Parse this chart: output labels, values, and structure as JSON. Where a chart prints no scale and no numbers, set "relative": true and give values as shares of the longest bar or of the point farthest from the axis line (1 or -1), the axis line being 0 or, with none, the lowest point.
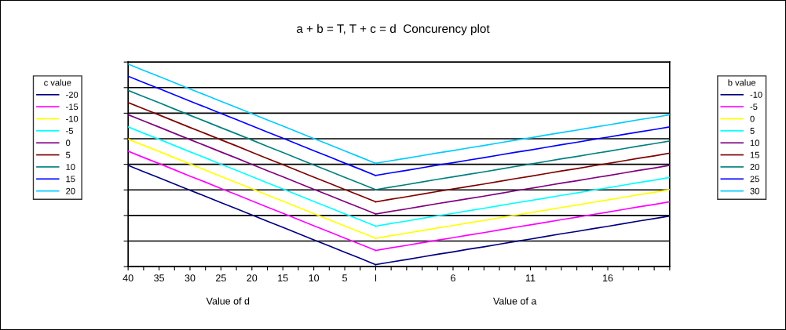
{
  "chart_data": {
    "type": "line",
    "title": "a + b = T, T + c = d  Concurency plot",
    "annotations": [
      "Value of d",
      "Value of a"
    ],
    "relative": true,
    "grid": "y",
    "legend": [
      "left",
      "right"
    ],
    "legend_title": [
      "c value",
      "b value"
    ],
    "line_style": "solid",
    "marker": "none",
    "categories": [
      "40",
      null,
      "35",
      null,
      "30",
      null,
      "25",
      null,
      "20",
      null,
      "15",
      null,
      "10",
      null,
      "5",
      null,
      "I",
      null,
      null,
      null,
      null,
      "6",
      null,
      null,
      null,
      null,
      "11",
      null,
      null,
      null,
      null,
      "16",
      null,
      null,
      null,
      null
    ],
    "series": [
      {
        "name": "-20",
        "color": "#000080",
        "values": [
          0.5,
          0.469,
          0.439,
          0.408,
          0.377,
          0.347,
          0.316,
          0.286,
          0.255,
          0.224,
          0.194,
          0.163,
          0.132,
          0.102,
          0.071,
          0.041,
          0.01,
          null,
          null,
          null,
          null,
          null,
          null,
          null,
          null,
          null,
          null,
          null,
          null,
          null,
          null,
          null,
          null,
          null,
          null,
          null
        ]
      },
      {
        "name": "-15",
        "color": "#ff00ff",
        "values": [
          0.57,
          0.539,
          0.509,
          0.478,
          0.447,
          0.417,
          0.386,
          0.356,
          0.325,
          0.294,
          0.264,
          0.233,
          0.202,
          0.172,
          0.141,
          0.111,
          0.08,
          null,
          null,
          null,
          null,
          null,
          null,
          null,
          null,
          null,
          null,
          null,
          null,
          null,
          null,
          null,
          null,
          null,
          null,
          null
        ]
      },
      {
        "name": "-10",
        "color": "#ffff00",
        "values": [
          0.63,
          0.599,
          0.569,
          0.538,
          0.507,
          0.477,
          0.446,
          0.416,
          0.385,
          0.354,
          0.324,
          0.293,
          0.262,
          0.232,
          0.201,
          0.171,
          0.14,
          null,
          null,
          null,
          null,
          null,
          null,
          null,
          null,
          null,
          null,
          null,
          null,
          null,
          null,
          null,
          null,
          null,
          null,
          null
        ]
      },
      {
        "name": "-5",
        "color": "#00ffff",
        "values": [
          0.69,
          0.659,
          0.629,
          0.598,
          0.567,
          0.537,
          0.506,
          0.476,
          0.445,
          0.414,
          0.384,
          0.353,
          0.322,
          0.292,
          0.261,
          0.231,
          0.2,
          null,
          null,
          null,
          null,
          null,
          null,
          null,
          null,
          null,
          null,
          null,
          null,
          null,
          null,
          null,
          null,
          null,
          null,
          null
        ]
      },
      {
        "name": "0",
        "color": "#800080",
        "values": [
          0.75,
          0.719,
          0.689,
          0.658,
          0.627,
          0.597,
          0.566,
          0.536,
          0.505,
          0.474,
          0.444,
          0.413,
          0.382,
          0.352,
          0.321,
          0.291,
          0.26,
          null,
          null,
          null,
          null,
          null,
          null,
          null,
          null,
          null,
          null,
          null,
          null,
          null,
          null,
          null,
          null,
          null,
          null,
          null
        ]
      },
      {
        "name": "5",
        "color": "#800000",
        "values": [
          0.81,
          0.779,
          0.749,
          0.718,
          0.687,
          0.657,
          0.626,
          0.596,
          0.565,
          0.534,
          0.504,
          0.473,
          0.442,
          0.412,
          0.381,
          0.351,
          0.32,
          null,
          null,
          null,
          null,
          null,
          null,
          null,
          null,
          null,
          null,
          null,
          null,
          null,
          null,
          null,
          null,
          null,
          null,
          null
        ]
      },
      {
        "name": "10",
        "color": "#008080",
        "values": [
          0.87,
          0.839,
          0.809,
          0.778,
          0.747,
          0.717,
          0.686,
          0.656,
          0.625,
          0.594,
          0.564,
          0.533,
          0.502,
          0.472,
          0.441,
          0.411,
          0.38,
          null,
          null,
          null,
          null,
          null,
          null,
          null,
          null,
          null,
          null,
          null,
          null,
          null,
          null,
          null,
          null,
          null,
          null,
          null
        ]
      },
      {
        "name": "15",
        "color": "#0000ff",
        "values": [
          0.94,
          0.909,
          0.879,
          0.848,
          0.817,
          0.787,
          0.756,
          0.726,
          0.695,
          0.664,
          0.634,
          0.603,
          0.572,
          0.542,
          0.511,
          0.481,
          0.45,
          null,
          null,
          null,
          null,
          null,
          null,
          null,
          null,
          null,
          null,
          null,
          null,
          null,
          null,
          null,
          null,
          null,
          null,
          null
        ]
      },
      {
        "name": "20",
        "color": "#00ccff",
        "values": [
          1.0,
          0.969,
          0.939,
          0.908,
          0.877,
          0.847,
          0.816,
          0.786,
          0.755,
          0.724,
          0.694,
          0.663,
          0.632,
          0.602,
          0.571,
          0.541,
          0.51,
          null,
          null,
          null,
          null,
          null,
          null,
          null,
          null,
          null,
          null,
          null,
          null,
          null,
          null,
          null,
          null,
          null,
          null,
          null
        ]
      },
      {
        "name": "-10",
        "color": "#000080",
        "values": [
          null,
          null,
          null,
          null,
          null,
          null,
          null,
          null,
          null,
          null,
          null,
          null,
          null,
          null,
          null,
          null,
          0.01,
          0.023,
          0.035,
          0.048,
          0.061,
          0.073,
          0.086,
          0.098,
          0.111,
          0.124,
          0.136,
          0.149,
          0.162,
          0.174,
          0.187,
          0.199,
          0.212,
          0.225,
          0.237,
          0.25
        ]
      },
      {
        "name": "-5",
        "color": "#ff00ff",
        "values": [
          null,
          null,
          null,
          null,
          null,
          null,
          null,
          null,
          null,
          null,
          null,
          null,
          null,
          null,
          null,
          null,
          0.08,
          0.093,
          0.105,
          0.118,
          0.131,
          0.143,
          0.156,
          0.168,
          0.181,
          0.194,
          0.206,
          0.219,
          0.232,
          0.244,
          0.257,
          0.269,
          0.282,
          0.295,
          0.307,
          0.32
        ]
      },
      {
        "name": "0",
        "color": "#ffff00",
        "values": [
          null,
          null,
          null,
          null,
          null,
          null,
          null,
          null,
          null,
          null,
          null,
          null,
          null,
          null,
          null,
          null,
          0.14,
          0.153,
          0.165,
          0.178,
          0.191,
          0.203,
          0.216,
          0.228,
          0.241,
          0.254,
          0.266,
          0.279,
          0.292,
          0.304,
          0.317,
          0.329,
          0.342,
          0.355,
          0.367,
          0.38
        ]
      },
      {
        "name": "5",
        "color": "#00ffff",
        "values": [
          null,
          null,
          null,
          null,
          null,
          null,
          null,
          null,
          null,
          null,
          null,
          null,
          null,
          null,
          null,
          null,
          0.2,
          0.213,
          0.225,
          0.238,
          0.251,
          0.263,
          0.276,
          0.288,
          0.301,
          0.314,
          0.326,
          0.339,
          0.352,
          0.364,
          0.377,
          0.389,
          0.402,
          0.415,
          0.427,
          0.44
        ]
      },
      {
        "name": "10",
        "color": "#800080",
        "values": [
          null,
          null,
          null,
          null,
          null,
          null,
          null,
          null,
          null,
          null,
          null,
          null,
          null,
          null,
          null,
          null,
          0.26,
          0.273,
          0.285,
          0.298,
          0.311,
          0.323,
          0.336,
          0.348,
          0.361,
          0.374,
          0.386,
          0.399,
          0.412,
          0.424,
          0.437,
          0.449,
          0.462,
          0.475,
          0.487,
          0.5
        ]
      },
      {
        "name": "15",
        "color": "#800000",
        "values": [
          null,
          null,
          null,
          null,
          null,
          null,
          null,
          null,
          null,
          null,
          null,
          null,
          null,
          null,
          null,
          null,
          0.32,
          0.333,
          0.345,
          0.358,
          0.371,
          0.383,
          0.396,
          0.408,
          0.421,
          0.434,
          0.446,
          0.459,
          0.472,
          0.484,
          0.497,
          0.509,
          0.522,
          0.535,
          0.547,
          0.56
        ]
      },
      {
        "name": "20",
        "color": "#008080",
        "values": [
          null,
          null,
          null,
          null,
          null,
          null,
          null,
          null,
          null,
          null,
          null,
          null,
          null,
          null,
          null,
          null,
          0.38,
          0.393,
          0.405,
          0.418,
          0.431,
          0.443,
          0.456,
          0.468,
          0.481,
          0.494,
          0.506,
          0.519,
          0.532,
          0.544,
          0.557,
          0.569,
          0.582,
          0.595,
          0.607,
          0.62
        ]
      },
      {
        "name": "25",
        "color": "#0000ff",
        "values": [
          null,
          null,
          null,
          null,
          null,
          null,
          null,
          null,
          null,
          null,
          null,
          null,
          null,
          null,
          null,
          null,
          0.45,
          0.463,
          0.475,
          0.488,
          0.501,
          0.513,
          0.526,
          0.538,
          0.551,
          0.564,
          0.576,
          0.589,
          0.602,
          0.614,
          0.627,
          0.639,
          0.652,
          0.665,
          0.677,
          0.69
        ]
      },
      {
        "name": "30",
        "color": "#00ccff",
        "values": [
          null,
          null,
          null,
          null,
          null,
          null,
          null,
          null,
          null,
          null,
          null,
          null,
          null,
          null,
          null,
          null,
          0.51,
          0.523,
          0.535,
          0.548,
          0.561,
          0.573,
          0.586,
          0.598,
          0.611,
          0.624,
          0.636,
          0.649,
          0.662,
          0.674,
          0.687,
          0.699,
          0.712,
          0.725,
          0.737,
          0.75
        ]
      }
    ]
  }
}
